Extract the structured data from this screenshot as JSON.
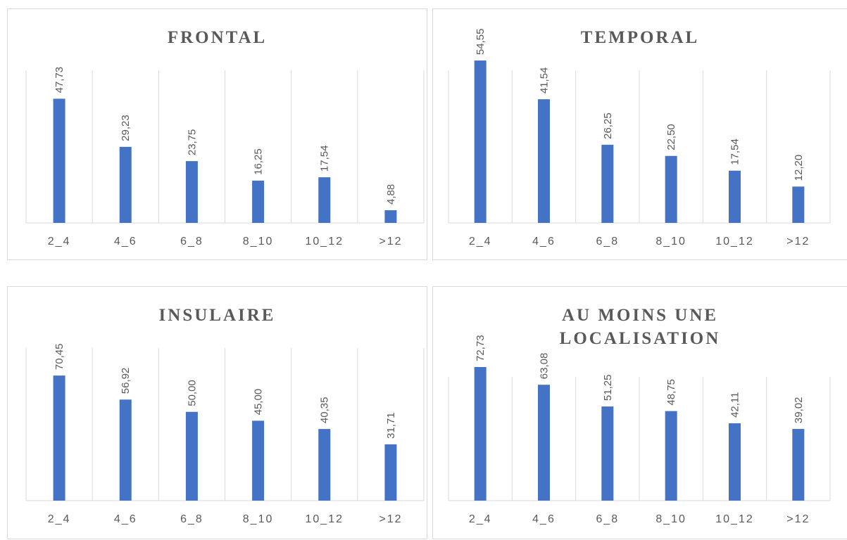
{
  "chart_data": [
    {
      "type": "bar",
      "title": "FRONTAL",
      "categories": [
        "2_4",
        "4_6",
        "6_8",
        "8_10",
        "10_12",
        ">12"
      ],
      "values": [
        47.73,
        29.23,
        23.75,
        16.25,
        17.54,
        4.88
      ],
      "data_labels": [
        "47,73",
        "29,23",
        "23,75",
        "16,25",
        "17,54",
        "4,88"
      ],
      "ylim": [
        0,
        60
      ],
      "grid": "vertical",
      "bar_color": "#4472c4"
    },
    {
      "type": "bar",
      "title": "TEMPORAL",
      "categories": [
        "2_4",
        "4_6",
        "6_8",
        "8_10",
        "10_12",
        ">12"
      ],
      "values": [
        54.55,
        41.54,
        26.25,
        22.5,
        17.54,
        12.2
      ],
      "data_labels": [
        "54,55",
        "41,54",
        "26,25",
        "22,50",
        "17,54",
        "12,20"
      ],
      "ylim": [
        0,
        60
      ],
      "grid": "vertical",
      "bar_color": "#4472c4"
    },
    {
      "type": "bar",
      "title": "INSULAIRE",
      "categories": [
        "2_4",
        "4_6",
        "6_8",
        "8_10",
        "10_12",
        ">12"
      ],
      "values": [
        70.45,
        56.92,
        50.0,
        45.0,
        40.35,
        31.71
      ],
      "data_labels": [
        "70,45",
        "56,92",
        "50,00",
        "45,00",
        "40,35",
        "31,71"
      ],
      "ylim": [
        0,
        80
      ],
      "grid": "vertical",
      "bar_color": "#4472c4"
    },
    {
      "type": "bar",
      "title": "AU MOINS UNE\nLOCALISATION",
      "categories": [
        "2_4",
        "4_6",
        "6_8",
        "8_10",
        "10_12",
        ">12"
      ],
      "values": [
        72.73,
        63.08,
        51.25,
        48.75,
        42.11,
        39.02
      ],
      "data_labels": [
        "72,73",
        "63,08",
        "51,25",
        "48,75",
        "42,11",
        "39,02"
      ],
      "ylim": [
        0,
        80
      ],
      "grid": "vertical",
      "bar_color": "#4472c4"
    }
  ]
}
